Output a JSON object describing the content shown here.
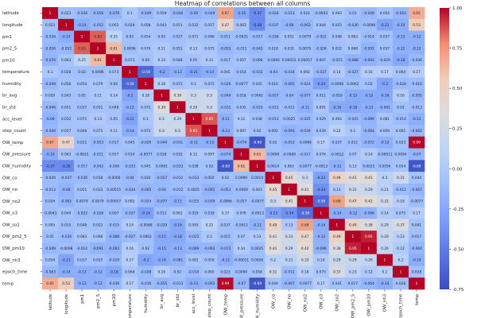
{
  "chart_data": {
    "type": "heatmap",
    "title": "Heatmap of correlations between all columns",
    "xlabel": "",
    "ylabel": "",
    "labels": [
      "latitude",
      "longitude",
      "pm1",
      "pm2_5",
      "pm10",
      "temperature",
      "humidity",
      "br_avg",
      "br_std",
      "acc_level",
      "step_count",
      "OW_temp",
      "OW_pressure",
      "OW_humidity",
      "OW_co",
      "OW_no",
      "OW_no2",
      "OW_o3",
      "OW_so2",
      "OW_pm2_5",
      "OW_pm10",
      "OW_nh3",
      "epoch_time",
      "temp"
    ],
    "x_tick_labels": [
      "latitude",
      "longitude",
      "pm1",
      "pm2_5",
      "pm10",
      "temperature",
      "humidity",
      "br_avg",
      "br_std",
      "acc_level",
      "step_count",
      "OW_temp",
      "OW_pressure",
      "OW_humidity",
      "OW_co",
      "OW_no",
      "OW_no2",
      "OW_o3",
      "OW_so2",
      "OW_pm2_5",
      "OW_pm10",
      "OW_nh3",
      "epoch_time",
      "temp"
    ],
    "values": [
      [
        1,
        0.023,
        -0.036,
        -0.056,
        -0.076,
        0.1,
        -0.049,
        0.059,
        -0.046,
        -0.09,
        -0.049,
        0.67,
        -0.16,
        -0.37,
        -0.026,
        -0.013,
        0.024,
        -0.0043,
        0.093,
        0.01,
        -0.049,
        0.054,
        -0.063,
        0.65
      ],
      [
        0.023,
        1,
        -0.14,
        -0.052,
        0.063,
        0.028,
        0.058,
        0.043,
        0.051,
        0.032,
        0.057,
        0.47,
        0.063,
        -0.38,
        -0.037,
        -0.08,
        -0.062,
        0.044,
        0.015,
        -0.036,
        -0.0098,
        -0.21,
        -0.14,
        0.53
      ],
      [
        -0.036,
        -0.14,
        1,
        0.83,
        0.25,
        0.02,
        0.054,
        0.05,
        0.037,
        0.071,
        0.046,
        0.011,
        -0.0025,
        -0.017,
        -0.036,
        0.051,
        0.0079,
        -0.022,
        0.048,
        0.083,
        -0.014,
        0.037,
        -0.13,
        -0.12
      ],
      [
        -0.056,
        -0.052,
        0.83,
        1,
        0.61,
        0.0096,
        0.079,
        0.11,
        0.051,
        0.13,
        0.075,
        -0.053,
        -0.011,
        -0.042,
        0.018,
        0.033,
        0.0079,
        -0.026,
        0.022,
        0.068,
        -0.091,
        0.037,
        -0.12,
        -0.12
      ],
      [
        -0.076,
        0.063,
        0.25,
        0.61,
        1,
        0.073,
        0.04,
        0.14,
        0.048,
        0.05,
        0.11,
        0.017,
        0.057,
        -0.006,
        -0.0066,
        0.00015,
        0.00057,
        0.007,
        -0.015,
        -0.088,
        -0.093,
        -0.029,
        -0.18,
        -0.036
      ],
      [
        0.1,
        0.028,
        0.02,
        0.0096,
        0.073,
        1,
        -0.59,
        -0.2,
        -0.12,
        -0.21,
        -0.14,
        0.045,
        0.014,
        -0.033,
        -0.04,
        -0.034,
        0.092,
        -0.037,
        0.14,
        -0.027,
        0.16,
        0.17,
        0.064,
        0.17
      ],
      [
        -0.049,
        0.058,
        0.054,
        0.079,
        0.04,
        -0.59,
        1,
        0.18,
        0.072,
        0.1,
        0.072,
        -0.026,
        -0.0077,
        0.045,
        0.016,
        -0.065,
        -0.024,
        -0.24,
        -0.0068,
        0.0062,
        0.02,
        -0.2,
        -0.028,
        -0.016
      ],
      [
        0.059,
        0.043,
        0.05,
        0.11,
        0.14,
        -0.2,
        0.18,
        1,
        0.39,
        0.3,
        0.3,
        -0.044,
        0.018,
        0.0061,
        -0.057,
        -0.04,
        -0.077,
        0.011,
        -0.029,
        -0.15,
        -0.15,
        -0.16,
        0.16,
        -0.055
      ],
      [
        -0.046,
        0.051,
        0.037,
        0.051,
        0.048,
        -0.12,
        0.072,
        0.39,
        1,
        0.29,
        0.3,
        -0.031,
        0.035,
        -0.033,
        -0.012,
        -0.012,
        -0.11,
        0.091,
        -0.16,
        -0.18,
        -0.13,
        -0.081,
        0.02,
        -0.013
      ],
      [
        -0.09,
        0.032,
        0.071,
        0.13,
        0.05,
        -0.21,
        0.1,
        0.3,
        0.29,
        1,
        0.85,
        -0.11,
        0.11,
        0.038,
        -0.013,
        0.0025,
        -0.025,
        0.029,
        0.093,
        -0.025,
        -0.089,
        0.081,
        -0.014,
        -0.13
      ],
      [
        -0.049,
        0.057,
        0.046,
        0.075,
        0.11,
        -0.14,
        0.072,
        0.3,
        0.3,
        0.85,
        1,
        -0.13,
        0.097,
        0.02,
        0.002,
        -0.091,
        -0.039,
        0.039,
        0.22,
        0.1,
        -0.064,
        0.059,
        0.065,
        -0.062
      ],
      [
        0.67,
        0.47,
        0.011,
        -0.053,
        0.017,
        0.045,
        -0.026,
        -0.044,
        -0.031,
        -0.11,
        -0.13,
        1,
        -0.074,
        -0.69,
        0.02,
        -0.053,
        -0.0066,
        0.17,
        0.037,
        0.015,
        -0.072,
        -0.12,
        0.023,
        0.99
      ],
      [
        -0.16,
        0.063,
        -0.0025,
        -0.011,
        0.057,
        0.014,
        -0.0077,
        0.018,
        0.035,
        0.11,
        0.097,
        -0.074,
        1,
        0.61,
        0.0099,
        -0.0069,
        -0.017,
        0.076,
        -0.0012,
        0.07,
        0.14,
        -0.00011,
        0.0094,
        -0.07
      ],
      [
        -0.37,
        -0.38,
        -0.017,
        -0.042,
        -0.006,
        -0.033,
        0.045,
        0.0061,
        -0.033,
        0.038,
        0.02,
        -0.69,
        0.61,
        1,
        0.0014,
        0.063,
        -0.0077,
        -0.0013,
        -0.11,
        0.13,
        0.0025,
        0.0056,
        0.054,
        -0.69
      ],
      [
        -0.026,
        -0.037,
        -0.036,
        0.018,
        -0.0066,
        -0.04,
        0.016,
        -0.057,
        -0.012,
        -0.013,
        0.002,
        0.02,
        0.0099,
        0.0014,
        1,
        0.45,
        0.3,
        -0.23,
        0.49,
        0.41,
        0.41,
        0.2,
        0.31,
        0.044
      ],
      [
        -0.013,
        -0.08,
        0.051,
        0.033,
        0.00015,
        -0.034,
        -0.065,
        -0.04,
        -0.012,
        0.0025,
        -0.091,
        -0.053,
        -0.0069,
        0.063,
        0.45,
        1,
        0.41,
        -0.34,
        0.13,
        0.31,
        0.29,
        0.21,
        -0.012,
        -0.067
      ],
      [
        0.024,
        -0.062,
        0.0079,
        0.0079,
        0.00057,
        0.092,
        -0.024,
        -0.077,
        -0.11,
        -0.025,
        -0.039,
        -0.0066,
        -0.017,
        -0.0077,
        0.3,
        0.41,
        1,
        -0.56,
        0.68,
        0.47,
        0.42,
        0.32,
        0.18,
        -0.0077
      ],
      [
        -0.0043,
        0.044,
        -0.022,
        -0.026,
        0.007,
        -0.037,
        -0.24,
        0.011,
        0.091,
        0.029,
        0.039,
        0.17,
        0.076,
        -0.0013,
        -0.23,
        -0.34,
        -0.56,
        1,
        -0.14,
        -0.12,
        -0.096,
        0.14,
        0.075,
        0.17
      ],
      [
        0.093,
        0.015,
        0.048,
        0.022,
        -0.015,
        0.14,
        -0.0068,
        -0.029,
        -0.16,
        0.093,
        0.22,
        0.037,
        -0.0012,
        -0.11,
        0.49,
        0.13,
        0.68,
        -0.14,
        1,
        0.49,
        0.38,
        0.29,
        0.37,
        0.041
      ],
      [
        0.01,
        -0.036,
        0.083,
        0.068,
        -0.088,
        -0.027,
        0.0062,
        -0.15,
        -0.18,
        -0.025,
        0.1,
        0.015,
        0.07,
        0.13,
        0.41,
        0.31,
        0.47,
        -0.12,
        0.49,
        1,
        0.95,
        0.29,
        0.23,
        0.017
      ],
      [
        -0.049,
        -0.0098,
        -0.014,
        -0.091,
        -0.093,
        0.16,
        0.02,
        -0.15,
        -0.13,
        -0.089,
        -0.064,
        -0.072,
        0.14,
        0.0025,
        0.41,
        0.29,
        0.42,
        -0.096,
        0.38,
        0.95,
        1,
        0.26,
        0.12,
        -0.064
      ],
      [
        0.054,
        -0.21,
        0.037,
        0.037,
        -0.029,
        0.17,
        -0.2,
        -0.16,
        -0.081,
        0.081,
        0.059,
        -0.12,
        -0.00011,
        0.0056,
        0.2,
        0.21,
        0.32,
        0.14,
        0.29,
        0.29,
        0.26,
        1,
        0.2,
        -0.14
      ],
      [
        -0.063,
        -0.14,
        -0.13,
        -0.12,
        -0.18,
        0.064,
        -0.028,
        0.16,
        0.02,
        -0.014,
        0.065,
        0.023,
        0.0094,
        0.054,
        0.31,
        -0.012,
        0.18,
        0.075,
        0.37,
        0.23,
        0.12,
        0.2,
        1,
        0.028
      ],
      [
        0.65,
        0.53,
        -0.12,
        -0.12,
        -0.036,
        0.17,
        -0.016,
        -0.055,
        -0.013,
        -0.13,
        -0.062,
        0.99,
        -0.07,
        -0.69,
        0.044,
        -0.067,
        -0.0077,
        0.17,
        0.041,
        0.017,
        -0.064,
        -0.14,
        0.028,
        1
      ]
    ],
    "colorbar": {
      "range": [
        -0.75,
        1.0
      ],
      "ticks": [
        1.0,
        0.75,
        0.5,
        0.25,
        0.0,
        -0.25,
        -0.5,
        -0.75
      ],
      "tick_labels": [
        "1.00",
        "0.75",
        "0.50",
        "0.25",
        "0.00",
        "-0.25",
        "-0.50",
        "-0.75"
      ]
    },
    "colormap": "coolwarm",
    "colors": {
      "low": "#3b4cc0",
      "mid": "#dddddd",
      "high": "#b40426"
    },
    "annotated": true,
    "grid": false,
    "legend": "colorbar-right"
  }
}
